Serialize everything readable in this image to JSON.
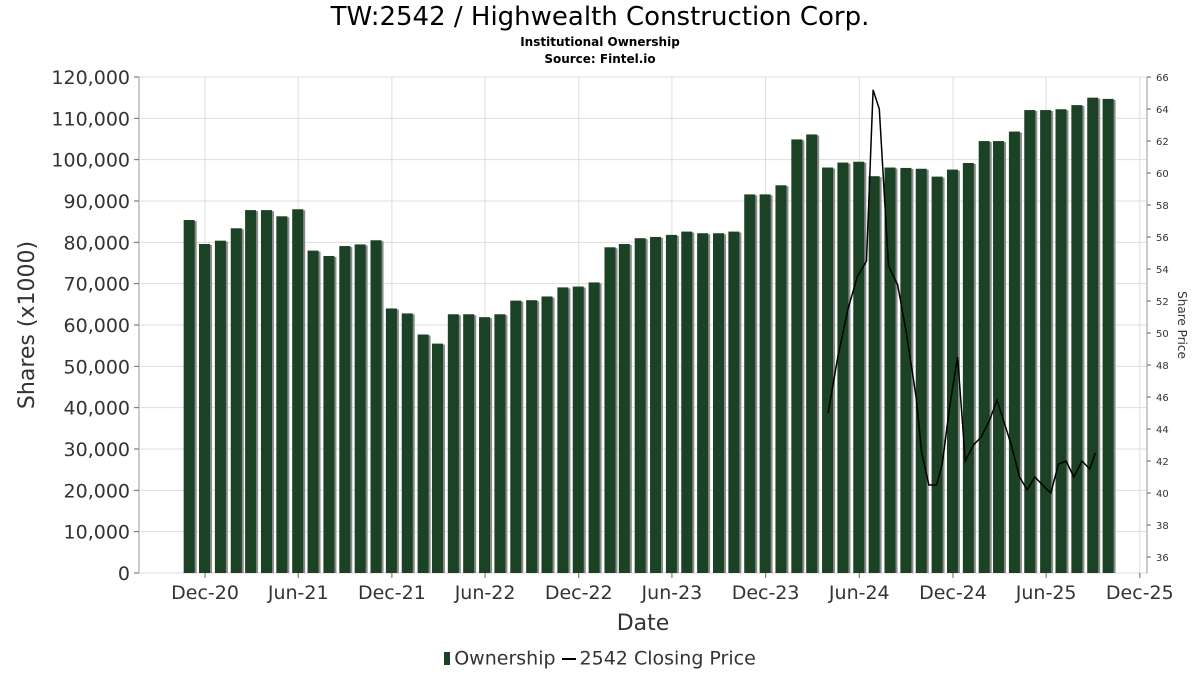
{
  "title": "TW:2542 / Highwealth Construction Corp.",
  "subtitle": "Institutional Ownership",
  "source": "Source: Fintel.io",
  "colors": {
    "bar": "#1b4224",
    "bar_shadow": "#8a8a8a",
    "line": "#000000",
    "grid": "#dddddd"
  },
  "chart_data": {
    "type": "bar",
    "title": "TW:2542 / Highwealth Construction Corp.",
    "subtitle": "Institutional Ownership",
    "xlabel": "Date",
    "ylabel": "Shares (x1000)",
    "y2label": "Share Price",
    "x_tick_labels": [
      "Dec-20",
      "Jun-21",
      "Dec-21",
      "Jun-22",
      "Dec-22",
      "Jun-23",
      "Dec-23",
      "Jun-24",
      "Dec-24",
      "Jun-25",
      "Dec-25"
    ],
    "x_tick_dates": [
      "2020-12-01",
      "2021-06-01",
      "2021-12-01",
      "2022-06-01",
      "2022-12-01",
      "2023-06-01",
      "2023-12-01",
      "2024-06-01",
      "2024-12-01",
      "2025-06-01",
      "2025-12-01"
    ],
    "xlim": [
      "2020-07-25",
      "2025-12-15"
    ],
    "ylim": [
      0,
      120000
    ],
    "y_ticks": [
      0,
      10000,
      20000,
      30000,
      40000,
      50000,
      60000,
      70000,
      80000,
      90000,
      100000,
      110000,
      120000
    ],
    "y_tick_labels": [
      "0",
      "10,000",
      "20,000",
      "30,000",
      "40,000",
      "50,000",
      "60,000",
      "70,000",
      "80,000",
      "90,000",
      "100,000",
      "110,000",
      "120,000"
    ],
    "y2lim": [
      35,
      66
    ],
    "y2_ticks": [
      36,
      38,
      40,
      42,
      44,
      46,
      48,
      50,
      52,
      54,
      56,
      58,
      60,
      62,
      64,
      66
    ],
    "grid": true,
    "legend_position": "bottom",
    "series": [
      {
        "name": "Ownership",
        "type": "bar",
        "x": [
          "2020-10-31",
          "2020-11-30",
          "2020-12-31",
          "2021-01-31",
          "2021-02-28",
          "2021-03-31",
          "2021-04-30",
          "2021-05-31",
          "2021-06-30",
          "2021-07-31",
          "2021-08-31",
          "2021-09-30",
          "2021-10-31",
          "2021-11-30",
          "2021-12-31",
          "2022-01-31",
          "2022-02-28",
          "2022-03-31",
          "2022-04-30",
          "2022-05-31",
          "2022-06-30",
          "2022-07-31",
          "2022-08-31",
          "2022-09-30",
          "2022-10-31",
          "2022-11-30",
          "2022-12-31",
          "2023-01-31",
          "2023-02-28",
          "2023-03-31",
          "2023-04-30",
          "2023-05-31",
          "2023-06-30",
          "2023-07-31",
          "2023-08-31",
          "2023-09-30",
          "2023-10-31",
          "2023-11-30",
          "2023-12-31",
          "2024-01-31",
          "2024-02-29",
          "2024-03-31",
          "2024-04-30",
          "2024-05-31",
          "2024-06-30",
          "2024-07-31",
          "2024-08-31",
          "2024-09-30",
          "2024-10-31",
          "2024-11-30",
          "2024-12-31",
          "2025-01-31",
          "2025-02-28",
          "2025-03-31",
          "2025-04-30",
          "2025-05-31",
          "2025-06-30",
          "2025-07-31",
          "2025-08-31",
          "2025-09-30"
        ],
        "values": [
          85400,
          79600,
          80400,
          83400,
          87800,
          87800,
          86300,
          88000,
          78000,
          76700,
          79100,
          79500,
          80500,
          64000,
          62800,
          57700,
          55500,
          62600,
          62600,
          61900,
          62600,
          65900,
          66000,
          66900,
          69100,
          69300,
          70300,
          78800,
          79600,
          81000,
          81300,
          81800,
          82600,
          82200,
          82200,
          82600,
          91600,
          91600,
          93800,
          104900,
          106100,
          98100,
          99300,
          99500,
          96000,
          98100,
          98000,
          97800,
          95900,
          97600,
          99200,
          104500,
          104500,
          106800,
          112000,
          112000,
          112200,
          113200,
          115000,
          114700
        ]
      },
      {
        "name": "2542 Closing Price",
        "type": "line",
        "x": [
          "2024-04-01",
          "2024-04-20",
          "2024-05-10",
          "2024-05-28",
          "2024-06-15",
          "2024-06-28",
          "2024-07-10",
          "2024-07-28",
          "2024-08-15",
          "2024-09-01",
          "2024-09-20",
          "2024-10-01",
          "2024-10-15",
          "2024-10-30",
          "2024-11-10",
          "2024-11-25",
          "2024-12-10",
          "2024-12-25",
          "2025-01-10",
          "2025-01-25",
          "2025-02-10",
          "2025-02-25",
          "2025-03-10",
          "2025-03-25",
          "2025-04-10",
          "2025-04-25",
          "2025-05-10",
          "2025-05-25",
          "2025-06-10",
          "2025-06-25",
          "2025-07-10",
          "2025-07-25",
          "2025-08-10",
          "2025-08-25",
          "2025-09-05"
        ],
        "values": [
          45.0,
          48.5,
          51.5,
          53.5,
          54.5,
          65.2,
          64.0,
          54.2,
          53.0,
          50.0,
          46.0,
          42.5,
          40.5,
          40.5,
          41.8,
          45.5,
          48.5,
          42.0,
          43.0,
          43.5,
          44.5,
          45.8,
          44.5,
          43.0,
          41.0,
          40.2,
          41.0,
          40.5,
          40.0,
          41.8,
          42.0,
          41.0,
          42.0,
          41.5,
          42.5
        ]
      }
    ]
  }
}
